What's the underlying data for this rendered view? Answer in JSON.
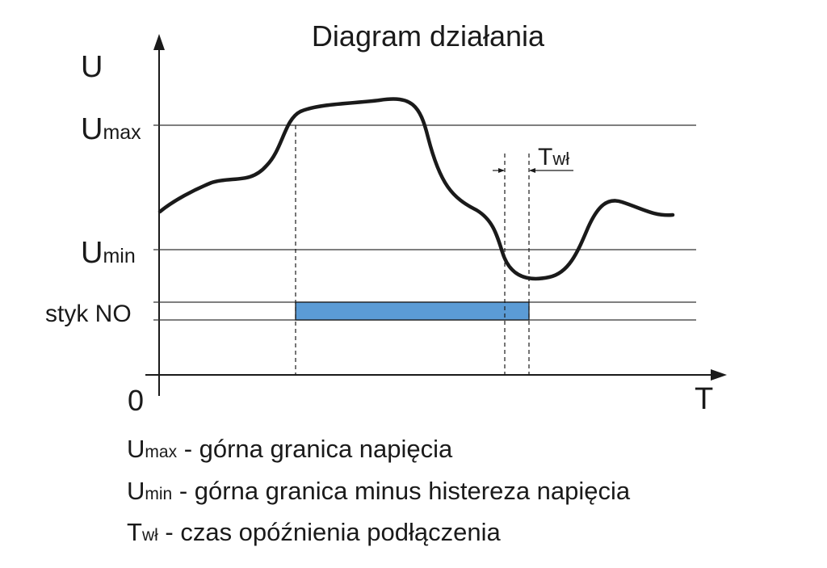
{
  "title": "Diagram działania",
  "axes": {
    "y_label": "U",
    "x_label": "T",
    "origin_label": "0"
  },
  "levels": {
    "umax": {
      "main": "U",
      "sub": "max"
    },
    "umin": {
      "main": "U",
      "sub": "min"
    },
    "contact": "styk NO"
  },
  "delay": {
    "main": "T",
    "sub": "wł"
  },
  "colors": {
    "contact_bar": "#5b9bd5",
    "line": "#1a1a1a"
  },
  "legend": [
    {
      "main": "U",
      "sub": "max",
      "text": " - górna granica napięcia"
    },
    {
      "main": "U",
      "sub": "min",
      "text": " - górna granica minus histereza napięcia"
    },
    {
      "main": "T",
      "sub": "wł",
      "text": " - czas opóźnienia podłączenia"
    }
  ]
}
